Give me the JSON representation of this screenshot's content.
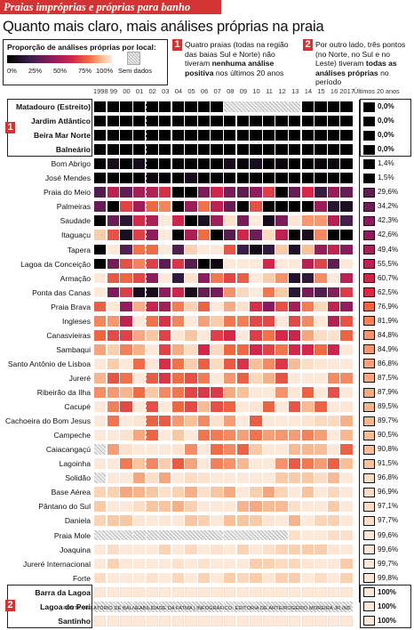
{
  "header": {
    "kicker": "Praias impróprias e próprias para banho",
    "headline": "Quanto mais claro, mais análises próprias na praia"
  },
  "legend": {
    "title": "Proporção de análises próprias por local:",
    "ticks": [
      "0%",
      "25%",
      "50%",
      "75%",
      "100%"
    ],
    "nodata_label": "Sem dados"
  },
  "callouts": [
    {
      "number": "1",
      "text_before": "Quatro praias (todas na região das baias Sul e Norte) não tiveram ",
      "text_bold": "nenhuma análise positiva",
      "text_after": " nos últimos 20 anos"
    },
    {
      "number": "2",
      "text_before": "Por outro lado, três pontos (no Norte, no Sul e no Leste) tiveram ",
      "text_bold": "todas as análises próprias",
      "text_after": " no período"
    }
  ],
  "last20_header": "Últimos 20 anos",
  "source": "FONTE: RELATÓRIO DE BALNEABILIDADE DA FATMA | INFOGRÁFICO: EDITORIA DE ARTE/ROGÉRIO MOREIRA JR./ND",
  "colors": {
    "scale": [
      "#000000",
      "#3d1f4b",
      "#8b1b5e",
      "#d4264a",
      "#ef6a43",
      "#f8c59e",
      "#fde9d9"
    ],
    "accent": "#d33333"
  },
  "chart_data": {
    "type": "heatmap",
    "x_label_values": [
      "1998",
      "99",
      "00",
      "01",
      "02",
      "03",
      "04",
      "05",
      "06",
      "07",
      "08",
      "09",
      "10",
      "11",
      "12",
      "13",
      "14",
      "15",
      "16",
      "2017"
    ],
    "value_scale": [
      0,
      100
    ],
    "groups": [
      {
        "number": "1",
        "rows": [
          "Matadouro (Estreito)",
          "Jardim Atlântico",
          "Beira Mar Norte",
          "Balneário"
        ]
      },
      {
        "number": "2",
        "rows": [
          "Barra da Lagoa",
          "Lagoa do Peri",
          "Santinho"
        ]
      }
    ],
    "rows": [
      {
        "name": "Matadouro (Estreito)",
        "bold": true,
        "last20": 0.0,
        "no_data": [
          10,
          15
        ]
      },
      {
        "name": "Jardim Atlântico",
        "bold": true,
        "last20": 0.0
      },
      {
        "name": "Beira Mar Norte",
        "bold": true,
        "last20": 0.0
      },
      {
        "name": "Balneário",
        "bold": true,
        "last20": 0.0
      },
      {
        "name": "Bom Abrigo",
        "last20": 1.4
      },
      {
        "name": "José Mendes",
        "last20": 1.5
      },
      {
        "name": "Praia do Meio",
        "last20": 29.6
      },
      {
        "name": "Palmeiras",
        "last20": 34.2
      },
      {
        "name": "Saudade",
        "last20": 42.3
      },
      {
        "name": "Itaguaçu",
        "last20": 42.6
      },
      {
        "name": "Tapera",
        "last20": 49.4
      },
      {
        "name": "Lagoa da Conceição",
        "last20": 55.5
      },
      {
        "name": "Armação",
        "last20": 60.7
      },
      {
        "name": "Ponta das Canas",
        "last20": 62.5
      },
      {
        "name": "Praia Brava",
        "last20": 76.9
      },
      {
        "name": "Ingleses",
        "last20": 81.9
      },
      {
        "name": "Canasvieiras",
        "last20": 84.8
      },
      {
        "name": "Sambaqui",
        "last20": 84.9
      },
      {
        "name": "Santo Antônio de Lisboa",
        "last20": 86.8
      },
      {
        "name": "Jureré",
        "last20": 87.5
      },
      {
        "name": "Ribeirão da Ilha",
        "last20": 87.9
      },
      {
        "name": "Cacupé",
        "last20": 89.5
      },
      {
        "name": "Cachoeira do Bom Jesus",
        "last20": 89.7
      },
      {
        "name": "Campeche",
        "last20": 90.5
      },
      {
        "name": "Caiacangaçú",
        "last20": 90.8,
        "no_data": [
          0,
          0
        ]
      },
      {
        "name": "Lagoinha",
        "last20": 91.5
      },
      {
        "name": "Solidão",
        "last20": 96.8,
        "no_data": [
          0,
          0
        ]
      },
      {
        "name": "Base Aérea",
        "last20": 96.9
      },
      {
        "name": "Pântano do Sul",
        "last20": 97.1
      },
      {
        "name": "Daniela",
        "last20": 97.7
      },
      {
        "name": "Praia Mole",
        "last20": 99.6,
        "no_data": [
          0,
          14
        ]
      },
      {
        "name": "Joaquina",
        "last20": 99.6
      },
      {
        "name": "Jureré Internacional",
        "last20": 99.7
      },
      {
        "name": "Forte",
        "last20": 99.8
      },
      {
        "name": "Barra da Lagoa",
        "bold": true,
        "last20": 100
      },
      {
        "name": "Lagoa do Peri",
        "bold": true,
        "last20": 100,
        "no_data": [
          0,
          19
        ]
      },
      {
        "name": "Santinho",
        "bold": true,
        "last20": 100
      }
    ]
  }
}
